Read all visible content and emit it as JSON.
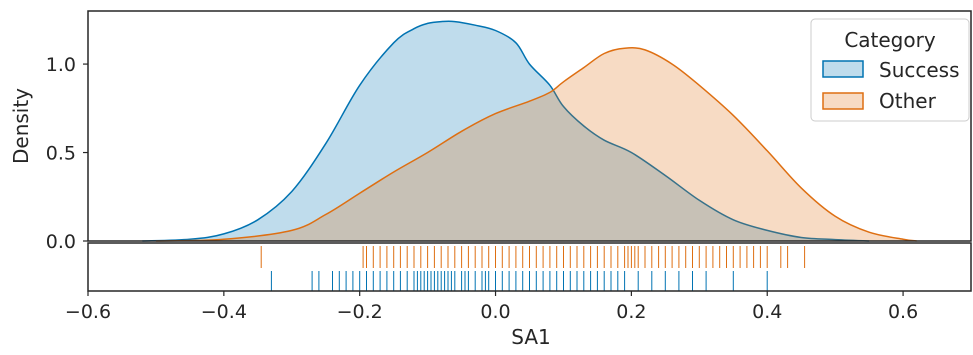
{
  "chart_data": {
    "type": "area",
    "xlabel": "SA1",
    "ylabel": "Density",
    "xlim": [
      -0.6,
      0.7
    ],
    "ylim": [
      0,
      1.3
    ],
    "x_ticks": [
      -0.6,
      -0.4,
      -0.2,
      0.0,
      0.2,
      0.4,
      0.6
    ],
    "x_tick_labels": [
      "−0.6",
      "−0.4",
      "−0.2",
      "0.0",
      "0.2",
      "0.4",
      "0.6"
    ],
    "y_ticks": [
      0.0,
      0.5,
      1.0
    ],
    "y_tick_labels": [
      "0.0",
      "0.5",
      "1.0"
    ],
    "grid": false,
    "legend": {
      "title": "Category",
      "position": "top-right"
    },
    "series": [
      {
        "name": "Success",
        "color": "#0173b2",
        "fill": "#a6cde3",
        "density": {
          "x": [
            -0.52,
            -0.45,
            -0.4,
            -0.35,
            -0.3,
            -0.25,
            -0.2,
            -0.15,
            -0.12,
            -0.1,
            -0.08,
            -0.06,
            -0.03,
            0.0,
            0.03,
            0.05,
            0.08,
            0.1,
            0.13,
            0.16,
            0.2,
            0.25,
            0.3,
            0.35,
            0.4,
            0.45,
            0.5,
            0.55
          ],
          "y": [
            0.0,
            0.01,
            0.04,
            0.12,
            0.28,
            0.55,
            0.88,
            1.12,
            1.2,
            1.23,
            1.24,
            1.24,
            1.22,
            1.19,
            1.12,
            1.0,
            0.88,
            0.76,
            0.65,
            0.57,
            0.5,
            0.37,
            0.23,
            0.12,
            0.06,
            0.02,
            0.008,
            0.0
          ]
        },
        "rug": [
          -0.33,
          -0.27,
          -0.26,
          -0.24,
          -0.23,
          -0.22,
          -0.21,
          -0.2,
          -0.19,
          -0.18,
          -0.17,
          -0.16,
          -0.15,
          -0.14,
          -0.13,
          -0.12,
          -0.115,
          -0.11,
          -0.105,
          -0.1,
          -0.095,
          -0.09,
          -0.085,
          -0.08,
          -0.075,
          -0.07,
          -0.065,
          -0.06,
          -0.05,
          -0.045,
          -0.04,
          -0.03,
          -0.02,
          -0.015,
          -0.01,
          0.0,
          0.01,
          0.02,
          0.03,
          0.04,
          0.05,
          0.06,
          0.07,
          0.08,
          0.09,
          0.1,
          0.11,
          0.12,
          0.13,
          0.14,
          0.15,
          0.16,
          0.17,
          0.18,
          0.19,
          0.21,
          0.23,
          0.25,
          0.27,
          0.29,
          0.31,
          0.35,
          0.4
        ]
      },
      {
        "name": "Other",
        "color": "#de6f12",
        "fill": "#f6cdb0",
        "density": {
          "x": [
            -0.5,
            -0.4,
            -0.3,
            -0.25,
            -0.2,
            -0.15,
            -0.1,
            -0.05,
            0.0,
            0.05,
            0.08,
            0.1,
            0.13,
            0.16,
            0.19,
            0.22,
            0.26,
            0.3,
            0.35,
            0.4,
            0.45,
            0.5,
            0.55,
            0.6,
            0.62
          ],
          "y": [
            0.0,
            0.01,
            0.06,
            0.15,
            0.27,
            0.39,
            0.5,
            0.62,
            0.72,
            0.79,
            0.84,
            0.9,
            0.98,
            1.06,
            1.09,
            1.08,
            1.0,
            0.88,
            0.71,
            0.51,
            0.3,
            0.14,
            0.05,
            0.01,
            0.0
          ]
        },
        "rug": [
          -0.345,
          -0.195,
          -0.19,
          -0.18,
          -0.17,
          -0.16,
          -0.15,
          -0.14,
          -0.13,
          -0.12,
          -0.11,
          -0.1,
          -0.09,
          -0.08,
          -0.07,
          -0.06,
          -0.05,
          -0.04,
          -0.03,
          -0.02,
          -0.01,
          0.0,
          0.01,
          0.02,
          0.03,
          0.04,
          0.05,
          0.06,
          0.07,
          0.08,
          0.09,
          0.1,
          0.11,
          0.12,
          0.13,
          0.14,
          0.15,
          0.16,
          0.17,
          0.18,
          0.19,
          0.195,
          0.2,
          0.205,
          0.21,
          0.22,
          0.23,
          0.24,
          0.25,
          0.26,
          0.27,
          0.28,
          0.29,
          0.3,
          0.31,
          0.32,
          0.33,
          0.34,
          0.35,
          0.36,
          0.37,
          0.38,
          0.39,
          0.4,
          0.42,
          0.43,
          0.455
        ]
      }
    ]
  }
}
